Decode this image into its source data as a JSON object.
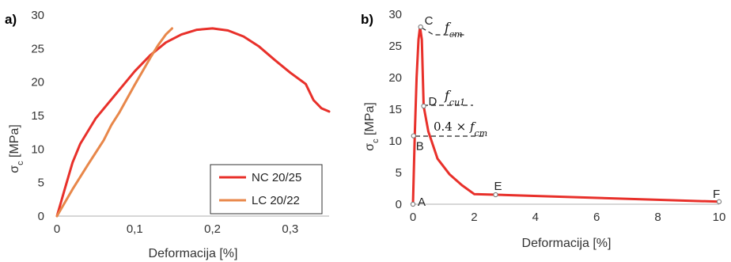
{
  "colors": {
    "nc": "#e8302a",
    "lc": "#e8874a",
    "axis": "#bfbfbf",
    "text": "#333333"
  },
  "chart_data": [
    {
      "panel_label": "a)",
      "type": "line",
      "xlabel": "Deformacija [%]",
      "ylabel": "σ",
      "ylabel_sub": "c",
      "ylabel_unit": " [MPa]",
      "xlim": [
        0,
        0.35
      ],
      "ylim": [
        0,
        30
      ],
      "xticks": [
        {
          "v": 0,
          "label": "0"
        },
        {
          "v": 0.1,
          "label": "0,1"
        },
        {
          "v": 0.2,
          "label": "0,2"
        },
        {
          "v": 0.3,
          "label": "0,3"
        }
      ],
      "yticks": [
        {
          "v": 0,
          "label": "0"
        },
        {
          "v": 5,
          "label": "5"
        },
        {
          "v": 10,
          "label": "10"
        },
        {
          "v": 15,
          "label": "15"
        },
        {
          "v": 20,
          "label": "20"
        },
        {
          "v": 25,
          "label": "25"
        },
        {
          "v": 30,
          "label": "30"
        }
      ],
      "grid": false,
      "legend_position": "bottom-right",
      "series": [
        {
          "name": "NC 20/25",
          "color": "#e8302a",
          "x": [
            0,
            0.01,
            0.02,
            0.03,
            0.05,
            0.08,
            0.1,
            0.12,
            0.14,
            0.16,
            0.18,
            0.2,
            0.22,
            0.24,
            0.26,
            0.28,
            0.3,
            0.32,
            0.33,
            0.34,
            0.35
          ],
          "y": [
            0,
            4,
            8,
            10.8,
            14.6,
            18.8,
            21.6,
            24,
            25.9,
            27.1,
            27.8,
            28,
            27.7,
            26.8,
            25.3,
            23.3,
            21.4,
            19.7,
            17.3,
            16.1,
            15.6
          ]
        },
        {
          "name": "LC 20/22",
          "color": "#e8874a",
          "x": [
            0,
            0.02,
            0.04,
            0.06,
            0.07,
            0.08,
            0.1,
            0.12,
            0.13,
            0.14,
            0.148
          ],
          "y": [
            0,
            4,
            7.7,
            11.3,
            13.6,
            15.4,
            19.6,
            23.6,
            25.5,
            27.1,
            28
          ]
        }
      ]
    },
    {
      "panel_label": "b)",
      "type": "line",
      "xlabel": "Deformacija [%]",
      "ylabel": "σ",
      "ylabel_sub": "c",
      "ylabel_unit": " [MPa]",
      "xlim": [
        0,
        10
      ],
      "ylim": [
        0,
        30
      ],
      "xticks": [
        {
          "v": 0,
          "label": "0"
        },
        {
          "v": 2,
          "label": "2"
        },
        {
          "v": 4,
          "label": "4"
        },
        {
          "v": 6,
          "label": "6"
        },
        {
          "v": 8,
          "label": "8"
        },
        {
          "v": 10,
          "label": "10"
        }
      ],
      "yticks": [
        {
          "v": 0,
          "label": "0"
        },
        {
          "v": 5,
          "label": "5"
        },
        {
          "v": 10,
          "label": "10"
        },
        {
          "v": 15,
          "label": "15"
        },
        {
          "v": 20,
          "label": "20"
        },
        {
          "v": 25,
          "label": "25"
        },
        {
          "v": 30,
          "label": "30"
        }
      ],
      "grid": false,
      "series": [
        {
          "color": "#e8302a",
          "x": [
            0,
            0.06,
            0.12,
            0.18,
            0.23,
            0.29,
            0.35,
            0.5,
            0.8,
            1.2,
            1.6,
            2.0,
            2.7,
            10.0
          ],
          "y": [
            0,
            11,
            20,
            26,
            28,
            26,
            15.5,
            11.5,
            7.2,
            4.7,
            3.0,
            1.6,
            1.5,
            0.4
          ]
        }
      ],
      "points": [
        {
          "label": "A",
          "x": 0,
          "y": 0
        },
        {
          "label": "B",
          "x": 0.02,
          "y": 10.8
        },
        {
          "label": "C",
          "x": 0.25,
          "y": 28
        },
        {
          "label": "D",
          "x": 0.35,
          "y": 15.5
        },
        {
          "label": "E",
          "x": 2.7,
          "y": 1.5
        },
        {
          "label": "F",
          "x": 10.0,
          "y": 0.4
        }
      ],
      "annotations": {
        "fcm_base": "f",
        "fcm_sub": "cm",
        "fcu1_base": "f",
        "fcu1_sub": "cu1",
        "frac_prefix": "0.4 × ",
        "frac_base": "f",
        "frac_sub": "cm"
      }
    }
  ]
}
